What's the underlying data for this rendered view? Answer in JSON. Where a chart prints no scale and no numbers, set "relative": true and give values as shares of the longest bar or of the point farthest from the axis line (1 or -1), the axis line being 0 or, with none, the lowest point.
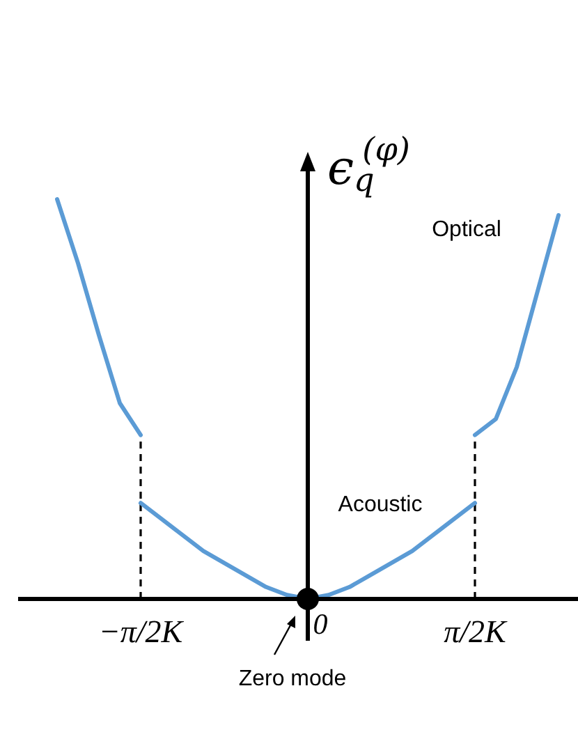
{
  "chart_data": {
    "type": "line",
    "relative": true,
    "ylabel": "ϵ$_{q}$$^{(φ)}$",
    "categories": [
      null,
      null,
      null,
      null,
      null,
      "−π/2K",
      null,
      null,
      null,
      null,
      null,
      null,
      null,
      "0",
      null,
      null,
      null,
      null,
      null,
      null,
      null,
      "π/2K",
      null,
      null,
      null,
      null
    ],
    "series": [
      {
        "name": "Optical",
        "color": "#5b9bd5",
        "values": [
          null,
          1,
          0.84,
          0.66,
          0.49,
          0.41,
          null,
          null,
          null,
          null,
          null,
          null,
          null,
          null,
          null,
          null,
          null,
          null,
          null,
          null,
          null,
          0.41,
          0.45,
          0.58,
          0.77,
          0.96
        ]
      },
      {
        "name": "Acoustic",
        "color": "#5b9bd5",
        "values": [
          null,
          null,
          null,
          null,
          null,
          0.24,
          0.2,
          0.16,
          0.12,
          0.09,
          0.06,
          0.03,
          0.01,
          0,
          0.01,
          0.03,
          0.06,
          0.09,
          0.12,
          0.16,
          0.2,
          0.24,
          null,
          null,
          null,
          null
        ]
      },
      {
        "type": "scatter",
        "color": "#000000",
        "marker": "circle",
        "values": [
          null,
          null,
          null,
          null,
          null,
          null,
          null,
          null,
          null,
          null,
          null,
          null,
          null,
          0,
          null,
          null,
          null,
          null,
          null,
          null,
          null,
          null,
          null,
          null,
          null,
          null
        ]
      }
    ],
    "ref_lines": [
      {
        "axis": "x",
        "value": "−π/2K",
        "color": "#000000",
        "line_style": "dashed"
      },
      {
        "axis": "x",
        "value": "π/2K",
        "color": "#000000",
        "line_style": "dashed"
      }
    ],
    "annotations": [
      "Zero mode"
    ]
  }
}
